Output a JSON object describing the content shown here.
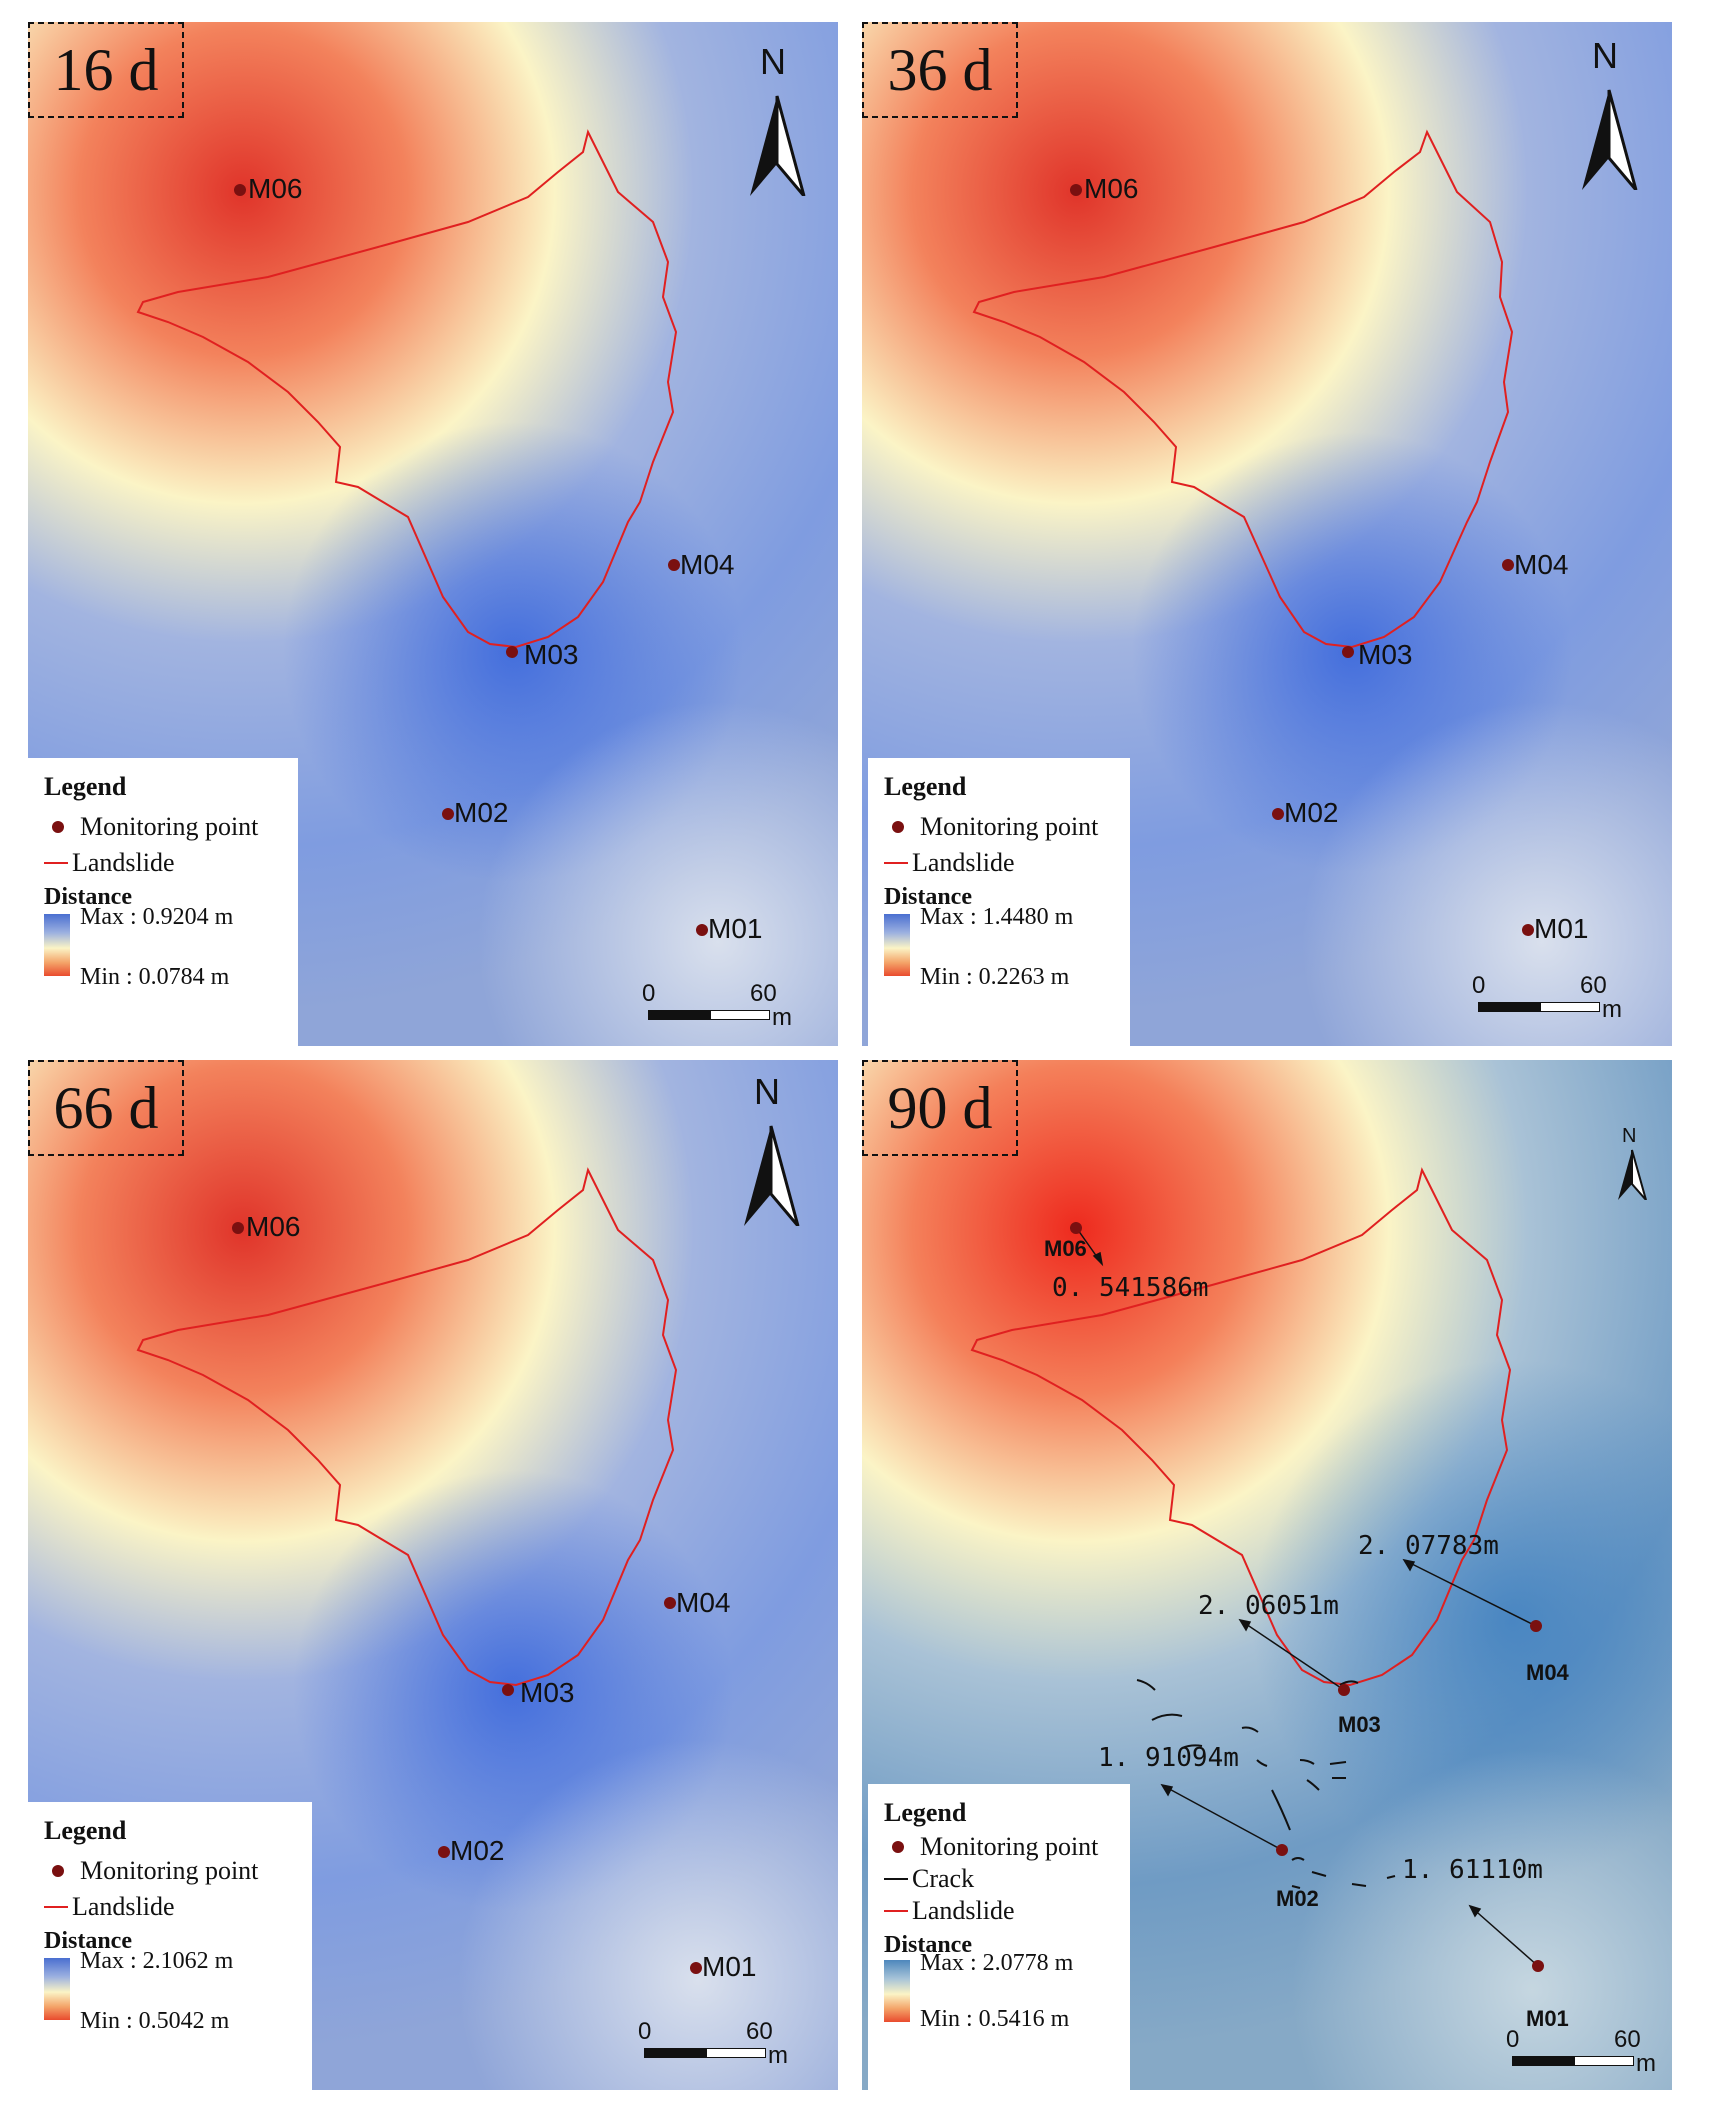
{
  "panels": [
    {
      "title": "16 d",
      "points": [
        {
          "id": "M06",
          "label": "M06"
        },
        {
          "id": "M04",
          "label": "M04"
        },
        {
          "id": "M03",
          "label": "M03"
        },
        {
          "id": "M02",
          "label": "M02"
        },
        {
          "id": "M01",
          "label": "M01"
        }
      ],
      "legend": {
        "title": "Legend",
        "monitoring_point": "Monitoring point",
        "landslide": "Landslide",
        "distance_title": "Distance",
        "max_label": "Max : 0.9204 m",
        "min_label": "Min : 0.0784 m"
      },
      "distance_range_m": [
        0.0784,
        0.9204
      ],
      "scale": {
        "zero": "0",
        "sixty": "60",
        "unit": "m"
      },
      "north": "N"
    },
    {
      "title": "36 d",
      "points": [
        {
          "id": "M06",
          "label": "M06"
        },
        {
          "id": "M04",
          "label": "M04"
        },
        {
          "id": "M03",
          "label": "M03"
        },
        {
          "id": "M02",
          "label": "M02"
        },
        {
          "id": "M01",
          "label": "M01"
        }
      ],
      "legend": {
        "title": "Legend",
        "monitoring_point": "Monitoring point",
        "landslide": "Landslide",
        "distance_title": "Distance",
        "max_label": "Max : 1.4480 m",
        "min_label": "Min : 0.2263 m"
      },
      "distance_range_m": [
        0.2263,
        1.448
      ],
      "scale": {
        "zero": "0",
        "sixty": "60",
        "unit": "m"
      },
      "north": "N"
    },
    {
      "title": "66 d",
      "points": [
        {
          "id": "M06",
          "label": "M06"
        },
        {
          "id": "M04",
          "label": "M04"
        },
        {
          "id": "M03",
          "label": "M03"
        },
        {
          "id": "M02",
          "label": "M02"
        },
        {
          "id": "M01",
          "label": "M01"
        }
      ],
      "legend": {
        "title": "Legend",
        "monitoring_point": "Monitoring point",
        "landslide": "Landslide",
        "distance_title": "Distance",
        "max_label": "Max : 2.1062 m",
        "min_label": "Min : 0.5042 m"
      },
      "distance_range_m": [
        0.5042,
        2.1062
      ],
      "scale": {
        "zero": "0",
        "sixty": "60",
        "unit": "m"
      },
      "north": "N"
    },
    {
      "title": "90 d",
      "points": [
        {
          "id": "M06",
          "label": "M06",
          "displacement": "0. 541586m"
        },
        {
          "id": "M04",
          "label": "M04",
          "displacement": "2. 07783m"
        },
        {
          "id": "M03",
          "label": "M03",
          "displacement": "2. 06051m"
        },
        {
          "id": "M02",
          "label": "M02",
          "displacement": "1. 91094m"
        },
        {
          "id": "M01",
          "label": "M01",
          "displacement": "1. 61110m"
        }
      ],
      "legend": {
        "title": "Legend",
        "monitoring_point": "Monitoring point",
        "crack": "Crack",
        "landslide": "Landslide",
        "distance_title": "Distance",
        "max_label": "Max : 2.0778 m",
        "min_label": "Min : 0.5416 m"
      },
      "distance_range_m": [
        0.5416,
        2.0778
      ],
      "scale": {
        "zero": "0",
        "sixty": "60",
        "unit": "m"
      },
      "north": "N"
    }
  ],
  "colors": {
    "landslide": "#e02020",
    "monitoring_point": "#7a1010",
    "max_blue": "#4a6fd0",
    "max_blue_90d": "#4d87bc",
    "mid_yellow": "#fbf4c6",
    "min_red": "#e94b2e",
    "crack": "#111111"
  }
}
